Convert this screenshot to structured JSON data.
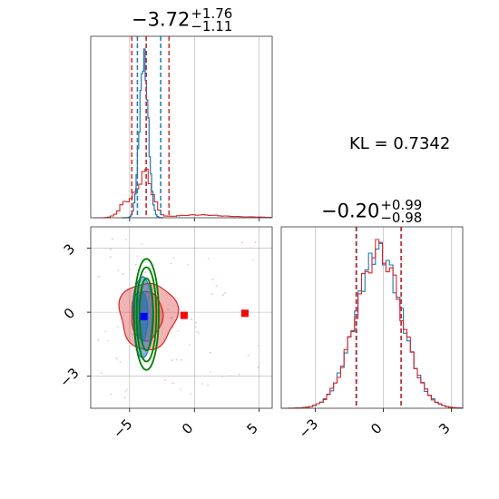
{
  "chart_data": [
    {
      "type": "histogram",
      "panel": "top-left",
      "parameter_index": 0,
      "title": {
        "value": "−3.72",
        "upper": "+1.76",
        "lower": "−1.11"
      },
      "xlim": [
        -8,
        6
      ],
      "x_ticks": [
        -5,
        0,
        5
      ],
      "series": [
        {
          "color": "#1f77b4",
          "quantile_lines": [
            -4.4,
            -3.72,
            -2.6
          ]
        },
        {
          "color": "#d62728",
          "quantile_lines": [
            -4.83,
            -3.72,
            -1.96
          ]
        }
      ]
    },
    {
      "type": "contour",
      "panel": "bottom-left",
      "xlim": [
        -8,
        6
      ],
      "ylim": [
        -4.5,
        4
      ],
      "x_ticks": [
        -5,
        0,
        5
      ],
      "x_tick_labels": [
        "−5",
        "0",
        "5"
      ],
      "y_ticks": [
        -3,
        0,
        3
      ],
      "y_tick_labels": [
        "−3",
        "0",
        "3"
      ],
      "markers": [
        {
          "color": "#0000ff",
          "x": -3.9,
          "y": -0.2
        },
        {
          "color": "#ff0000",
          "x": -0.8,
          "y": -0.15
        },
        {
          "color": "#ff0000",
          "x": 3.9,
          "y": -0.05
        }
      ],
      "series": [
        {
          "color": "#1f77b4",
          "center": [
            -4.0,
            -0.2
          ],
          "spread": [
            0.75,
            1.9
          ]
        },
        {
          "color": "#d62728",
          "center": [
            -3.6,
            -0.15
          ],
          "spread": [
            2.2,
            1.55
          ]
        },
        {
          "color": "#008000",
          "center": [
            -3.7,
            -0.1
          ],
          "ellipse_semi_axes": [
            0.95,
            2.6
          ]
        }
      ]
    },
    {
      "type": "histogram",
      "panel": "bottom-right",
      "parameter_index": 1,
      "title": {
        "value": "−0.20",
        "upper": "+0.99",
        "lower": "−0.98"
      },
      "xlim": [
        -4.5,
        3.5
      ],
      "x_ticks": [
        -3,
        0,
        3
      ],
      "x_tick_labels": [
        "−3",
        "0",
        "3"
      ],
      "series": [
        {
          "color": "#1f77b4",
          "quantile_lines": [
            -1.18,
            -0.2,
            0.79
          ]
        },
        {
          "color": "#d62728",
          "quantile_lines": [
            -1.2,
            -0.2,
            0.78
          ]
        }
      ]
    }
  ],
  "kl_label": "KL = 0.7342",
  "colors": {
    "blue": "#1f77b4",
    "red": "#d62728",
    "green": "#008000",
    "grid": "#b0b0b0"
  }
}
